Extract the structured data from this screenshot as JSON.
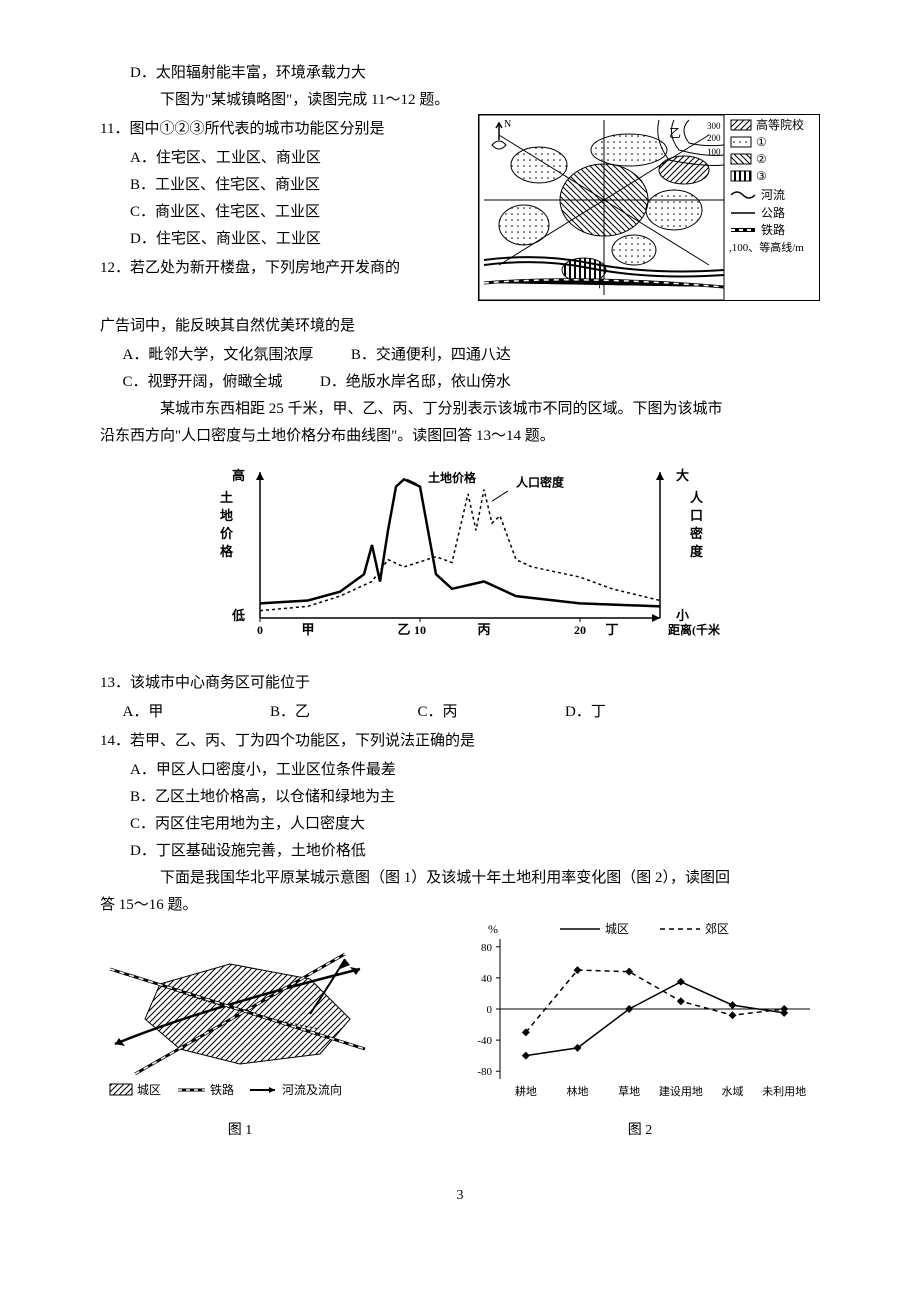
{
  "preQuestion": {
    "optionD": "D．太阳辐射能丰富，环境承载力大",
    "passage": "下图为\"某城镇略图\"，读图完成 11～12 题。"
  },
  "q11": {
    "stem": "11．图中①②③所代表的城市功能区分别是",
    "options": {
      "A": "A．住宅区、工业区、商业区",
      "B": "B．工业区、住宅区、商业区",
      "C": "C．商业区、住宅区、工业区",
      "D": "D．住宅区、商业区、工业区"
    }
  },
  "mapLegend": {
    "items": [
      {
        "symbol": "hatch-ne",
        "label": "高等院校"
      },
      {
        "symbol": "dots",
        "label": "①"
      },
      {
        "symbol": "hatch-se",
        "label": "②"
      },
      {
        "symbol": "vbars",
        "label": "③"
      },
      {
        "symbol": "river",
        "label": "河流"
      },
      {
        "symbol": "road",
        "label": "公路"
      },
      {
        "symbol": "rail",
        "label": "铁路"
      }
    ],
    "contourNote": ",100、等高线/m",
    "northLabel": "N",
    "contours": [
      "300",
      "200",
      "100"
    ],
    "markerYi": "乙",
    "markerJia": "甲"
  },
  "q12": {
    "stem1": "12．若乙处为新开楼盘，下列房地产开发商的",
    "stem2": "广告词中，能反映其自然优美环境的是",
    "options": {
      "A": "A．毗邻大学，文化氛围浓厚",
      "B": "B．交通便利，四通八达",
      "C": "C．视野开阔，俯瞰全城",
      "D": "D．绝版水岸名邸，依山傍水"
    }
  },
  "passage2": {
    "line1": "某城市东西相距 25 千米，甲、乙、丙、丁分别表示该城市不同的区域。下图为该城市",
    "line2": "沿东西方向\"人口密度与土地价格分布曲线图\"。读图回答 13～14 题。"
  },
  "chart1": {
    "type": "dual-axis-line",
    "leftYLabel": "土\n地\n价\n格",
    "leftYTop": "高",
    "leftYBottom": "低",
    "rightYLabel": "人\n口\n密\n度",
    "rightYTop": "大",
    "rightYBottom": "小",
    "xLabel": "距离(千米)",
    "xTicks": [
      0,
      10,
      20
    ],
    "xMarkers": [
      "甲",
      "乙",
      "丙",
      "丁"
    ],
    "xMarkerPositions": [
      3,
      9,
      14,
      22
    ],
    "seriesLabels": {
      "price": "土地价格",
      "density": "人口密度"
    },
    "priceLine": {
      "color": "#000",
      "style": "solid",
      "width": 2.5,
      "points": [
        [
          0,
          10
        ],
        [
          3,
          12
        ],
        [
          5,
          18
        ],
        [
          6.5,
          30
        ],
        [
          7,
          50
        ],
        [
          7.5,
          25
        ],
        [
          8,
          60
        ],
        [
          8.5,
          90
        ],
        [
          9,
          95
        ],
        [
          10,
          90
        ],
        [
          11,
          30
        ],
        [
          12,
          20
        ],
        [
          14,
          25
        ],
        [
          16,
          15
        ],
        [
          20,
          10
        ],
        [
          25,
          8
        ]
      ]
    },
    "densityLine": {
      "color": "#000",
      "style": "dashed",
      "width": 1.5,
      "points": [
        [
          0,
          5
        ],
        [
          3,
          8
        ],
        [
          5,
          15
        ],
        [
          7,
          25
        ],
        [
          8,
          40
        ],
        [
          9,
          35
        ],
        [
          11,
          42
        ],
        [
          12,
          38
        ],
        [
          13,
          85
        ],
        [
          13.5,
          60
        ],
        [
          14,
          88
        ],
        [
          14.5,
          65
        ],
        [
          15,
          70
        ],
        [
          16,
          40
        ],
        [
          17,
          35
        ],
        [
          20,
          28
        ],
        [
          22,
          20
        ],
        [
          25,
          12
        ]
      ]
    },
    "background_color": "#ffffff",
    "xlim": [
      0,
      25
    ],
    "ylim": [
      0,
      100
    ]
  },
  "q13": {
    "stem": "13．该城市中心商务区可能位于",
    "options": {
      "A": "A．甲",
      "B": "B．乙",
      "C": "C．丙",
      "D": "D．丁"
    }
  },
  "q14": {
    "stem": "14．若甲、乙、丙、丁为四个功能区，下列说法正确的是",
    "options": {
      "A": "A．甲区人口密度小，工业区位条件最差",
      "B": "B．乙区土地价格高，以仓储和绿地为主",
      "C": "C．丙区住宅用地为主，人口密度大",
      "D": "D．丁区基础设施完善，土地价格低"
    }
  },
  "passage3": {
    "line1": "下面是我国华北平原某城示意图（图 1）及该城十年土地利用率变化图（图 2），读图回",
    "line2": "答 15～16 题。"
  },
  "figure1": {
    "label": "图 1",
    "legend": {
      "area": "城区",
      "rail": "铁路",
      "river": "河流及流向"
    },
    "legendSymbols": {
      "area": "hatch",
      "rail": "rail-line",
      "river": "arrow-line"
    }
  },
  "figure2": {
    "label": "图 2",
    "type": "line",
    "yLabel": "%",
    "yTicks": [
      -80,
      -40,
      0,
      40,
      80
    ],
    "ylim": [
      -90,
      90
    ],
    "xCategories": [
      "耕地",
      "林地",
      "草地",
      "建设用地",
      "水域",
      "未利用地"
    ],
    "legendLabels": {
      "urban": "城区",
      "suburb": "郊区"
    },
    "urbanLine": {
      "color": "#000",
      "style": "solid",
      "width": 1.5,
      "marker": "diamond",
      "values": [
        -60,
        -50,
        0,
        35,
        5,
        -5
      ]
    },
    "suburbLine": {
      "color": "#000",
      "style": "dashed",
      "width": 1.5,
      "marker": "diamond",
      "values": [
        -30,
        50,
        48,
        10,
        -8,
        0
      ]
    },
    "background_color": "#ffffff"
  },
  "pageNumber": "3"
}
